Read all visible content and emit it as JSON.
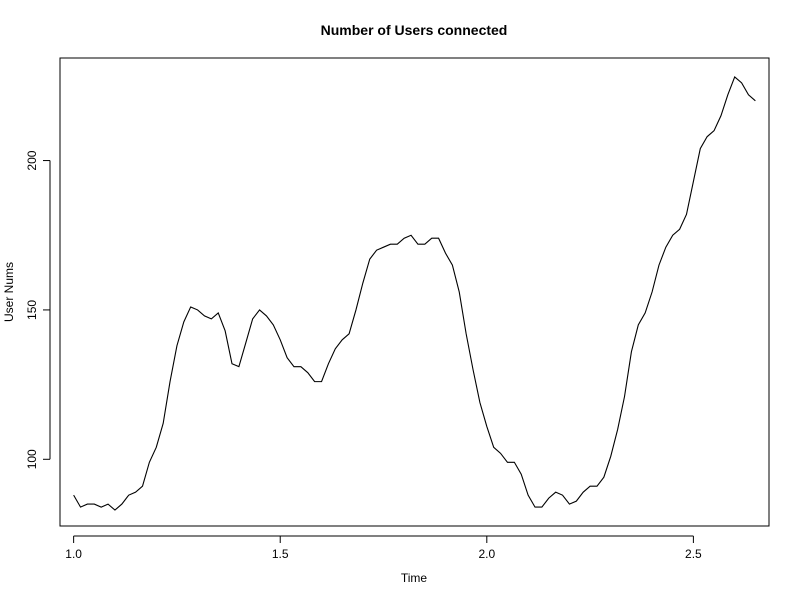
{
  "chart_data": {
    "type": "line",
    "title": "Number of Users connected",
    "xlabel": "Time",
    "ylabel": "User Nums",
    "xlim": [
      0.967,
      2.683
    ],
    "ylim": [
      77.67,
      234.33
    ],
    "x_ticks": [
      1.0,
      1.5,
      2.0,
      2.5
    ],
    "x_tick_labels": [
      "1.0",
      "1.5",
      "2.0",
      "2.5"
    ],
    "y_ticks": [
      100,
      150,
      200
    ],
    "y_tick_labels": [
      "100",
      "150",
      "200"
    ],
    "grid": false,
    "legend": "none",
    "line_color": "#000000",
    "series": [
      {
        "x": [
          1.0,
          1.0167,
          1.0333,
          1.05,
          1.0667,
          1.0833,
          1.1,
          1.1167,
          1.1333,
          1.15,
          1.1667,
          1.1833,
          1.2,
          1.2167,
          1.2333,
          1.25,
          1.2667,
          1.2833,
          1.3,
          1.3167,
          1.3333,
          1.35,
          1.3667,
          1.3833,
          1.4,
          1.4167,
          1.4333,
          1.45,
          1.4667,
          1.4833,
          1.5,
          1.5167,
          1.5333,
          1.55,
          1.5667,
          1.5833,
          1.6,
          1.6167,
          1.6333,
          1.65,
          1.6667,
          1.6833,
          1.7,
          1.7167,
          1.7333,
          1.75,
          1.7667,
          1.7833,
          1.8,
          1.8167,
          1.8333,
          1.85,
          1.8667,
          1.8833,
          1.9,
          1.9167,
          1.9333,
          1.95,
          1.9667,
          1.9833,
          2.0,
          2.0167,
          2.0333,
          2.05,
          2.0667,
          2.0833,
          2.1,
          2.1167,
          2.1333,
          2.15,
          2.1667,
          2.1833,
          2.2,
          2.2167,
          2.2333,
          2.25,
          2.2667,
          2.2833,
          2.3,
          2.3167,
          2.3333,
          2.35,
          2.3667,
          2.3833,
          2.4,
          2.4167,
          2.4333,
          2.45,
          2.4667,
          2.4833,
          2.5,
          2.5167,
          2.5333,
          2.55,
          2.5667,
          2.5833,
          2.6,
          2.6167,
          2.6333,
          2.65
        ],
        "values": [
          88,
          84,
          85,
          85,
          84,
          85,
          83,
          85,
          88,
          89,
          91,
          99,
          104,
          112,
          126,
          138,
          146,
          151,
          150,
          148,
          147,
          149,
          143,
          132,
          131,
          139,
          147,
          150,
          148,
          145,
          140,
          134,
          131,
          131,
          129,
          126,
          126,
          132,
          137,
          140,
          142,
          150,
          159,
          167,
          170,
          171,
          172,
          172,
          174,
          175,
          172,
          172,
          174,
          174,
          169,
          165,
          156,
          142,
          130,
          119,
          111,
          104,
          102,
          99,
          99,
          95,
          88,
          84,
          84,
          87,
          89,
          88,
          85,
          86,
          89,
          91,
          91,
          94,
          101,
          110,
          121,
          136,
          145,
          149,
          156,
          165,
          171,
          175,
          177,
          182,
          193,
          204,
          208,
          210,
          215,
          222,
          228,
          226,
          222,
          220
        ]
      }
    ]
  }
}
